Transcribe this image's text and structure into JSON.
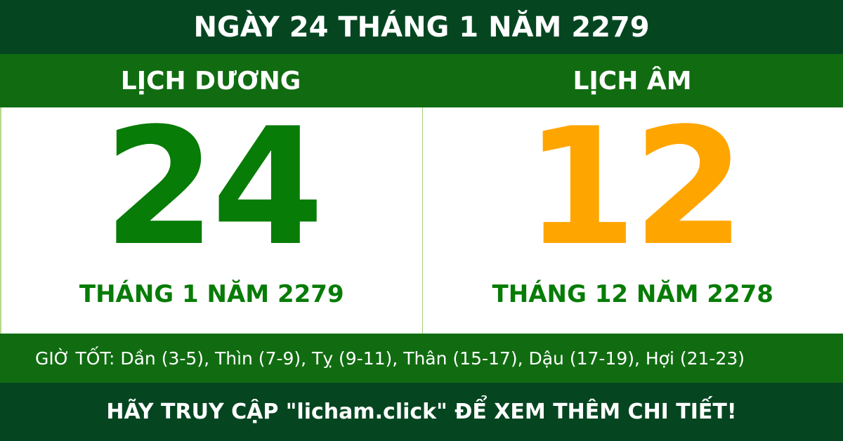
{
  "title": "NGÀY 24 THÁNG 1 NĂM 2279",
  "solar": {
    "heading": "LỊCH DƯƠNG",
    "day": "24",
    "month_year": "THÁNG 1 NĂM 2279",
    "color": "#077c07"
  },
  "lunar": {
    "heading": "LỊCH ÂM",
    "day": "12",
    "month_year": "THÁNG 12 NĂM 2278",
    "color": "#ffa500"
  },
  "good_hours": "GIỜ TỐT: Dần (3-5), Thìn (7-9), Tỵ (9-11), Thân (15-17), Dậu (17-19), Hợi (21-23)",
  "footer": "HÃY TRUY CẬP \"licham.click\" ĐỂ XEM THÊM CHI TIẾT!"
}
